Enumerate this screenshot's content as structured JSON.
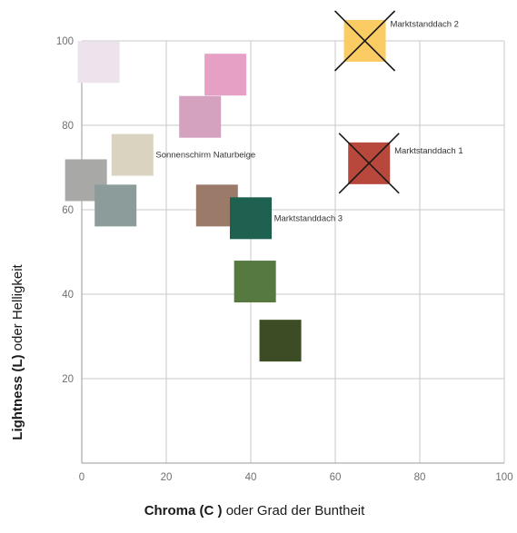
{
  "chart_data": {
    "type": "scatter",
    "title": "",
    "xlabel_bold": "Chroma (C )",
    "xlabel_rest": " oder Grad der Buntheit",
    "ylabel_bold": "Lightness (L)",
    "ylabel_rest": " oder Helligkeit",
    "xlim": [
      0,
      100
    ],
    "ylim": [
      0,
      100
    ],
    "x_ticks": [
      "0",
      "20",
      "40",
      "60",
      "80",
      "100"
    ],
    "y_ticks": [
      "20",
      "40",
      "60",
      "80",
      "100"
    ],
    "grid": true,
    "marker": "square",
    "points": [
      {
        "x": 4,
        "y": 95,
        "color": "#ECE3EC"
      },
      {
        "x": 34,
        "y": 92,
        "color": "#E69FC5"
      },
      {
        "x": 28,
        "y": 82,
        "color": "#D4A2BE"
      },
      {
        "x": 12,
        "y": 73,
        "color": "#D9D3C0"
      },
      {
        "x": 1,
        "y": 67,
        "color": "#A8A8A6"
      },
      {
        "x": 8,
        "y": 61,
        "color": "#8B9C9A"
      },
      {
        "x": 32,
        "y": 61,
        "color": "#9C7A69"
      },
      {
        "x": 40,
        "y": 58,
        "color": "#1F6150"
      },
      {
        "x": 41,
        "y": 43,
        "color": "#55793F"
      },
      {
        "x": 47,
        "y": 29,
        "color": "#3C4D25"
      },
      {
        "x": 67,
        "y": 100,
        "color": "#FBCC63"
      },
      {
        "x": 68,
        "y": 71,
        "color": "#B8483C"
      }
    ],
    "annotations": [
      {
        "text": "Sonnenschirm Naturbeige",
        "x": 17.5,
        "y": 73
      },
      {
        "text": "Marktstanddach 3",
        "x": 45.5,
        "y": 58
      },
      {
        "text": "Marktstanddach 2",
        "x": 73,
        "y": 104
      },
      {
        "text": "Marktstanddach 1",
        "x": 74,
        "y": 74
      }
    ],
    "crossed_out": [
      {
        "x": 67,
        "y": 100
      },
      {
        "x": 68,
        "y": 71
      }
    ]
  }
}
